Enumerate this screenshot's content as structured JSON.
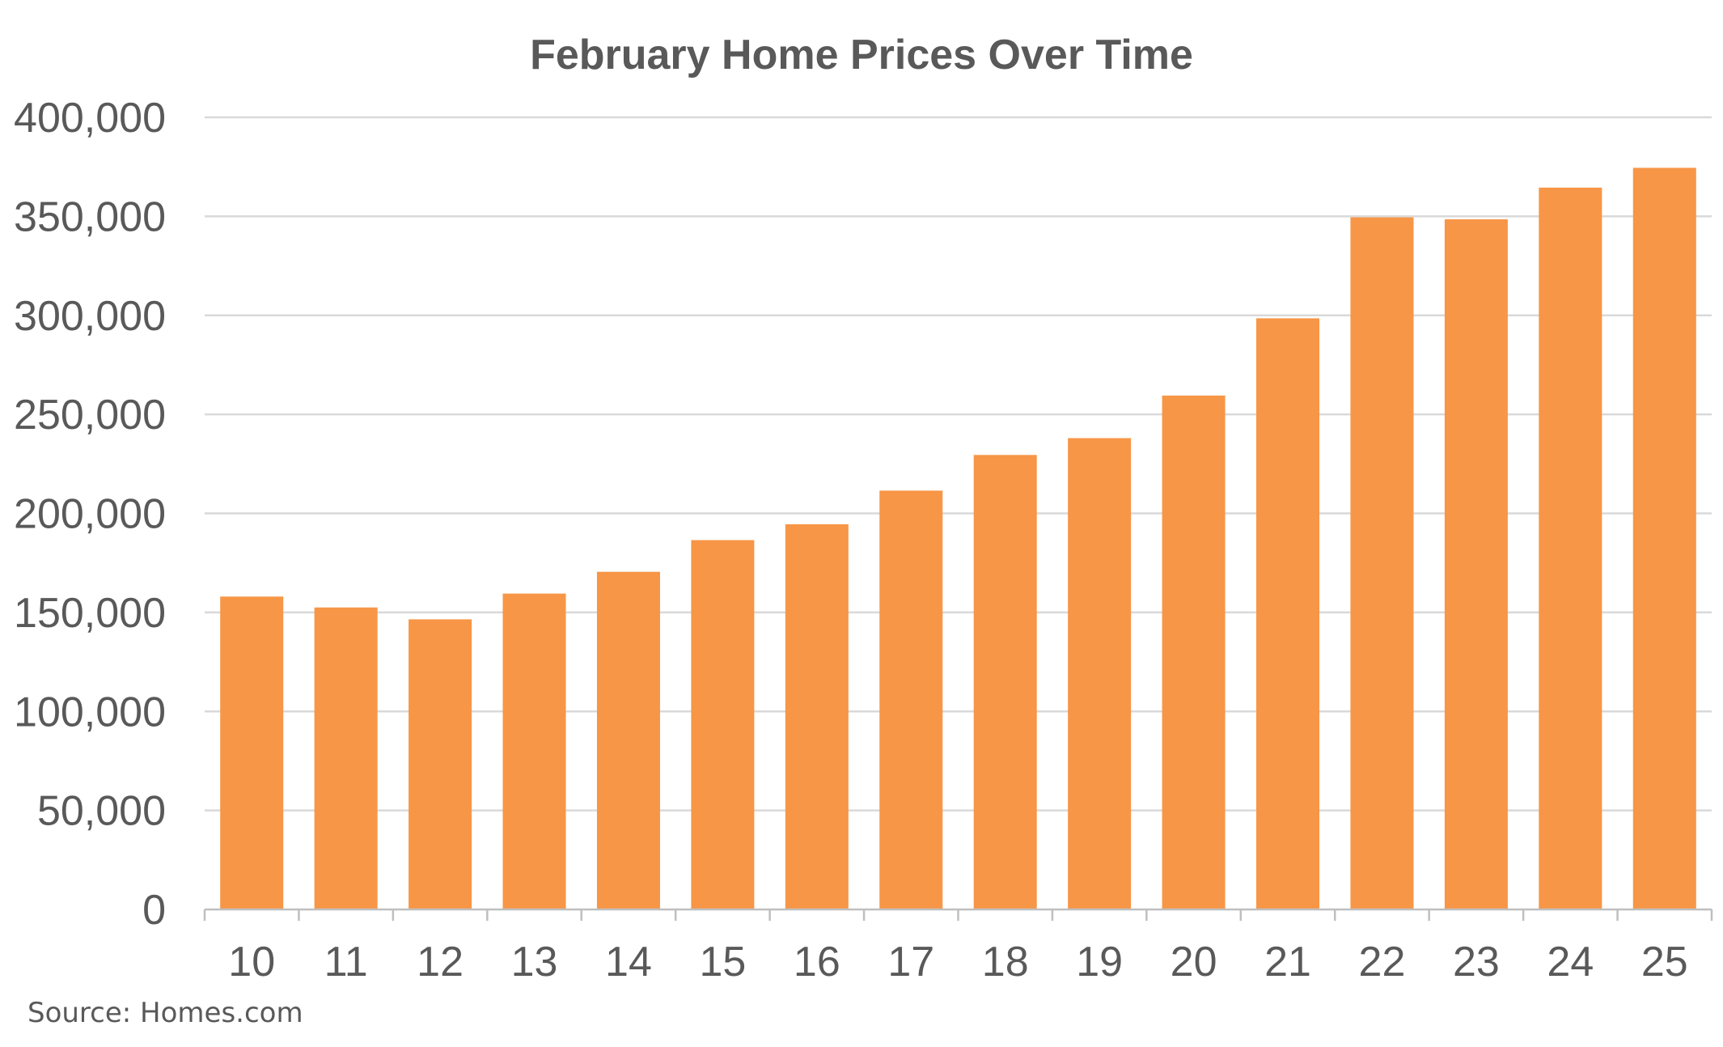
{
  "chart_data": {
    "type": "bar",
    "title": "February Home Prices Over Time",
    "xlabel": "",
    "ylabel": "",
    "categories": [
      "10",
      "11",
      "12",
      "13",
      "14",
      "15",
      "16",
      "17",
      "18",
      "19",
      "20",
      "21",
      "22",
      "23",
      "24",
      "25"
    ],
    "values": [
      158000,
      152500,
      146500,
      159500,
      170500,
      186500,
      194500,
      211500,
      229500,
      238000,
      259500,
      298500,
      349500,
      348500,
      364500,
      374500
    ],
    "ylim": [
      0,
      400000
    ],
    "yticks": [
      0,
      50000,
      100000,
      150000,
      200000,
      250000,
      300000,
      350000,
      400000
    ],
    "ytick_labels": [
      "0",
      "50,000",
      "100,000",
      "150,000",
      "200,000",
      "250,000",
      "300,000",
      "350,000",
      "400,000"
    ],
    "grid": true,
    "legend": "none",
    "colors": {
      "bar": "#F79646",
      "grid": "#D9D9D9",
      "axis": "#BFBFBF",
      "text": "#595959"
    }
  },
  "footer": {
    "source": "Source: Homes.com"
  }
}
